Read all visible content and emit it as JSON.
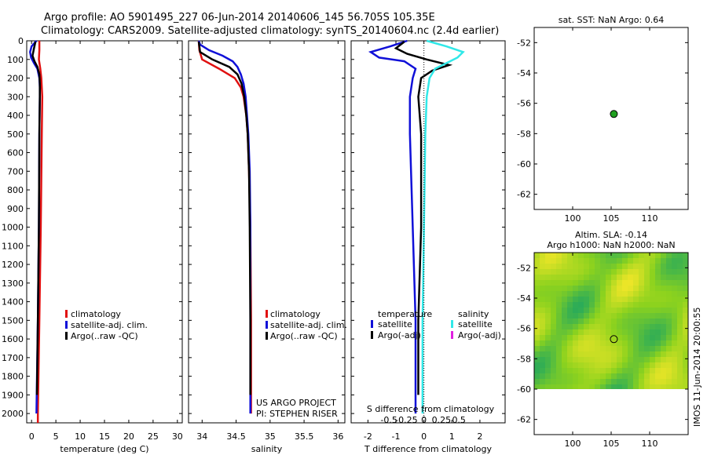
{
  "header": {
    "line1": "Argo profile: AO 5901495_227 06-Jun-2014 20140606_145 56.705S 105.35E",
    "line2": "Climatology: CARS2009. Satellite-adjusted climatology: synTS_20140604.nc (2.4d earlier)"
  },
  "colors": {
    "climatology": "#e01010",
    "satellite": "#1010d8",
    "argo": "#000000",
    "sal_satellite": "#30e8e8",
    "sal_argo": "#e020e0",
    "marker": "#20a020",
    "zero_line": "#000000"
  },
  "chart_data": [
    {
      "id": "temperature",
      "type": "line",
      "xlabel": "temperature (deg C)",
      "xlim": [
        -1,
        31
      ],
      "xticks": [
        0,
        5,
        10,
        15,
        20,
        25,
        30
      ],
      "xticklabels": [
        "0",
        "5",
        "10",
        "15",
        "20",
        "25",
        "30"
      ],
      "ylim": [
        2050,
        0
      ],
      "yticks": [
        0,
        100,
        200,
        300,
        400,
        500,
        600,
        700,
        800,
        900,
        1000,
        1100,
        1200,
        1300,
        1400,
        1500,
        1600,
        1700,
        1800,
        1900,
        2000
      ],
      "yticklabels": [
        "0",
        "100",
        "200",
        "300",
        "400",
        "500",
        "600",
        "700",
        "800",
        "900",
        "1000",
        "1100",
        "1200",
        "1300",
        "1400",
        "1500",
        "1600",
        "1700",
        "1800",
        "1900",
        "2000"
      ],
      "legend": [
        "climatology",
        "satellite-adj. clim.",
        "Argo(..raw -QC)"
      ],
      "legend_position": "lower-right",
      "series": [
        {
          "name": "climatology",
          "color": "#e01010",
          "depth": [
            0,
            50,
            100,
            150,
            200,
            300,
            500,
            1000,
            1500,
            2000,
            2050
          ],
          "values": [
            1.6,
            1.6,
            1.5,
            1.8,
            2.0,
            2.2,
            2.1,
            1.9,
            1.6,
            1.3,
            1.3
          ]
        },
        {
          "name": "satellite-adj. clim.",
          "color": "#1010d8",
          "depth": [
            0,
            30,
            60,
            90,
            120,
            150,
            200,
            250,
            300,
            500,
            1000,
            1500,
            2000
          ],
          "values": [
            1.0,
            0.0,
            -0.3,
            -0.1,
            0.5,
            1.2,
            1.6,
            1.7,
            1.7,
            1.6,
            1.5,
            1.3,
            1.0
          ]
        },
        {
          "name": "Argo(..raw -QC)",
          "color": "#000000",
          "depth": [
            5,
            40,
            80,
            110,
            140,
            180,
            230,
            300,
            500,
            1000,
            1500,
            1900
          ],
          "values": [
            0.8,
            0.5,
            0.2,
            0.6,
            1.2,
            1.6,
            1.7,
            1.7,
            1.6,
            1.5,
            1.3,
            1.1
          ]
        }
      ]
    },
    {
      "id": "salinity",
      "type": "line",
      "xlabel": "salinity",
      "xlim": [
        33.8,
        36.1
      ],
      "xticks": [
        34,
        34.5,
        35,
        35.5,
        36
      ],
      "xticklabels": [
        "34",
        "34.5",
        "35",
        "35.5",
        "36"
      ],
      "ylim": [
        2050,
        0
      ],
      "legend": [
        "climatology",
        "satellite-adj. clim.",
        "Argo(..raw -QC)"
      ],
      "legend_position": "lower-right",
      "annotation": [
        "US ARGO PROJECT",
        "PI: STEPHEN RISER"
      ],
      "series": [
        {
          "name": "climatology",
          "color": "#e01010",
          "depth": [
            0,
            50,
            100,
            150,
            200,
            250,
            300,
            400,
            500,
            700,
            1000,
            1500,
            2000
          ],
          "values": [
            33.95,
            33.96,
            34.0,
            34.25,
            34.48,
            34.57,
            34.61,
            34.65,
            34.67,
            34.69,
            34.71,
            34.72,
            34.72
          ]
        },
        {
          "name": "satellite-adj. clim.",
          "color": "#1010d8",
          "depth": [
            0,
            20,
            50,
            80,
            110,
            140,
            180,
            230,
            300,
            400,
            500,
            700,
            1000,
            1500,
            2000
          ],
          "values": [
            33.95,
            33.97,
            34.1,
            34.3,
            34.45,
            34.52,
            34.57,
            34.61,
            34.64,
            34.66,
            34.68,
            34.7,
            34.71,
            34.71,
            34.71
          ]
        },
        {
          "name": "Argo(..raw -QC)",
          "color": "#000000",
          "depth": [
            5,
            60,
            100,
            140,
            180,
            230,
            300,
            400,
            500,
            700,
            1000,
            1500,
            1900
          ],
          "values": [
            33.95,
            33.97,
            34.15,
            34.4,
            34.52,
            34.58,
            34.62,
            34.65,
            34.67,
            34.69,
            34.7,
            34.71,
            34.71
          ]
        }
      ]
    },
    {
      "id": "difference",
      "type": "line",
      "xlabel": "T difference from climatology",
      "top_xlabel": "S difference from climatology",
      "xlim": [
        -2.6,
        2.9
      ],
      "xticks": [
        -2,
        -1,
        0,
        1,
        2
      ],
      "xticklabels": [
        "-2",
        "-1",
        "0",
        "1",
        "2"
      ],
      "top_xticks": [
        -1.25,
        -0.625,
        0,
        0.625,
        1.25
      ],
      "top_xticklabels": [
        "-0.5",
        "-0.25",
        "0",
        "0.25",
        "0.5"
      ],
      "ylim": [
        2050,
        0
      ],
      "legend_columns": [
        {
          "title": "temperature",
          "items": [
            "satellite",
            "Argo(-adj)"
          ]
        },
        {
          "title": "salinity",
          "items": [
            "satellite",
            "Argo(-adj)"
          ]
        }
      ],
      "legend_labels": {
        "temp_title": "temperature",
        "temp_satellite": "satellite",
        "temp_argo": "Argo(-adj)",
        "sal_title": "salinity",
        "sal_satellite": "satellite",
        "sal_argo": "Argo(-adj)"
      },
      "series": [
        {
          "name": "temperature satellite",
          "color": "#1010d8",
          "depth": [
            0,
            30,
            60,
            90,
            110,
            150,
            200,
            300,
            500,
            1000,
            1500,
            2000
          ],
          "values": [
            -0.6,
            -1.2,
            -1.9,
            -1.6,
            -0.7,
            -0.3,
            -0.4,
            -0.5,
            -0.5,
            -0.4,
            -0.3,
            -0.3
          ]
        },
        {
          "name": "temperature Argo(-adj)",
          "color": "#000000",
          "depth": [
            5,
            40,
            70,
            100,
            130,
            160,
            200,
            300,
            500,
            1000,
            1500,
            1900
          ],
          "values": [
            -0.7,
            -1.0,
            -0.6,
            0.1,
            0.9,
            0.3,
            -0.1,
            -0.2,
            -0.1,
            -0.1,
            -0.2,
            -0.2
          ]
        },
        {
          "name": "salinity satellite",
          "color": "#30e8e8",
          "depth": [
            0,
            30,
            60,
            90,
            120,
            150,
            200,
            300,
            500,
            1000,
            1500,
            2000
          ],
          "values": [
            0.1,
            0.8,
            1.4,
            1.2,
            0.8,
            0.4,
            0.2,
            0.1,
            0.05,
            0.0,
            -0.05,
            -0.05
          ]
        }
      ]
    },
    {
      "id": "sst_map",
      "type": "scatter",
      "title": "sat. SST: NaN Argo: 0.64",
      "xlim": [
        95,
        115
      ],
      "ylim": [
        -63,
        -51
      ],
      "xticks": [
        100,
        105,
        110
      ],
      "xticklabels": [
        "100",
        "105",
        "110"
      ],
      "yticks": [
        -52,
        -54,
        -56,
        -58,
        -60,
        -62
      ],
      "yticklabels": [
        "-52",
        "-54",
        "-56",
        "-58",
        "-60",
        "-62"
      ],
      "points": [
        {
          "x": 105.35,
          "y": -56.705
        }
      ]
    },
    {
      "id": "sla_map",
      "type": "heatmap",
      "title1": "Altim. SLA: -0.14",
      "title2": "Argo h1000: NaN h2000: NaN",
      "xlim": [
        95,
        115
      ],
      "ylim": [
        -63,
        -51
      ],
      "xticks": [
        100,
        105,
        110
      ],
      "xticklabels": [
        "100",
        "105",
        "110"
      ],
      "yticks": [
        -52,
        -54,
        -56,
        -58,
        -60,
        -62
      ],
      "yticklabels": [
        "-52",
        "-54",
        "-56",
        "-58",
        "-60",
        "-62"
      ],
      "data_lat_range": [
        -60,
        -51
      ],
      "points": [
        {
          "x": 105.35,
          "y": -56.705
        }
      ],
      "side_label": "IMOS 11-Jun-2014 20:00:55"
    }
  ]
}
